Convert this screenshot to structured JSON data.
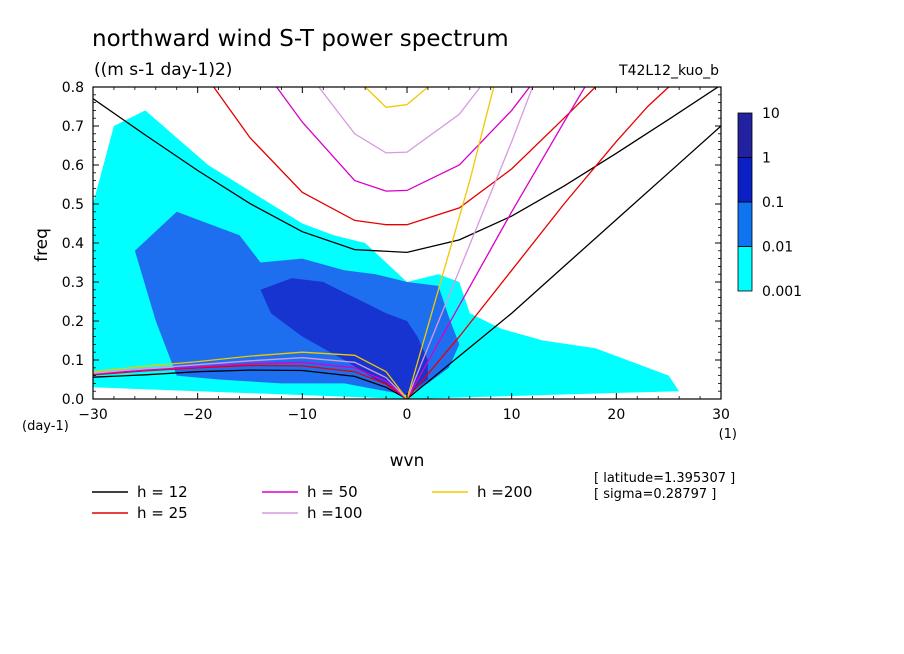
{
  "chart_data": {
    "type": "heatmap",
    "title": "northward wind S-T power spectrum",
    "units_label": "((m s-1 day-1)2)",
    "run_label": "T42L12_kuo_b",
    "xlabel": "wvn",
    "ylabel": "freq",
    "y_unit_label": "(day-1)",
    "x_unit_label": "(1)",
    "xlim": [
      -30,
      30
    ],
    "ylim": [
      0,
      0.8
    ],
    "x_ticks": [
      -30,
      -20,
      -10,
      0,
      10,
      20,
      30
    ],
    "y_ticks": [
      0.0,
      0.1,
      0.2,
      0.3,
      0.4,
      0.5,
      0.6,
      0.7,
      0.8
    ],
    "colorbar": {
      "levels": [
        "0.001",
        "0.01",
        "0.1",
        "1",
        "10"
      ],
      "colors": [
        "#00ffff",
        "#0f74f0",
        "#0a1fc4",
        "#2222a0"
      ]
    },
    "shading_colors": {
      "0.001": "#00ffff",
      "0.01": "#1e6ff0",
      "0.1": "#1834d0"
    },
    "regions": [
      {
        "level": "0.001",
        "points": [
          [
            -30,
            0.06
          ],
          [
            -30,
            0.5
          ],
          [
            -28,
            0.7
          ],
          [
            -25,
            0.74
          ],
          [
            -22,
            0.67
          ],
          [
            -19,
            0.6
          ],
          [
            -16,
            0.55
          ],
          [
            -13,
            0.5
          ],
          [
            -10,
            0.45
          ],
          [
            -7,
            0.42
          ],
          [
            -4,
            0.4
          ],
          [
            -2,
            0.35
          ],
          [
            0,
            0.3
          ],
          [
            3,
            0.32
          ],
          [
            5,
            0.3
          ],
          [
            6,
            0.22
          ],
          [
            9,
            0.18
          ],
          [
            13,
            0.15
          ],
          [
            18,
            0.13
          ],
          [
            25,
            0.06
          ],
          [
            26,
            0.02
          ],
          [
            0,
            0
          ],
          [
            -30,
            0.03
          ]
        ]
      },
      {
        "level": "0.01",
        "points": [
          [
            -22,
            0.06
          ],
          [
            -24,
            0.2
          ],
          [
            -26,
            0.38
          ],
          [
            -22,
            0.48
          ],
          [
            -16,
            0.42
          ],
          [
            -14,
            0.35
          ],
          [
            -10,
            0.36
          ],
          [
            -6,
            0.33
          ],
          [
            -3,
            0.32
          ],
          [
            0,
            0.3
          ],
          [
            3,
            0.29
          ],
          [
            4,
            0.21
          ],
          [
            5,
            0.14
          ],
          [
            4,
            0.08
          ],
          [
            2,
            0.04
          ],
          [
            0,
            0.01
          ],
          [
            -6,
            0.04
          ],
          [
            -12,
            0.04
          ],
          [
            -18,
            0.05
          ]
        ]
      },
      {
        "level": "0.1",
        "points": [
          [
            -13,
            0.22
          ],
          [
            -14,
            0.28
          ],
          [
            -11,
            0.31
          ],
          [
            -8,
            0.3
          ],
          [
            -5,
            0.26
          ],
          [
            -2,
            0.22
          ],
          [
            0,
            0.2
          ],
          [
            1,
            0.16
          ],
          [
            2,
            0.1
          ],
          [
            2,
            0.05
          ],
          [
            0,
            0.01
          ],
          [
            -3,
            0.05
          ],
          [
            -6,
            0.1
          ],
          [
            -10,
            0.16
          ]
        ]
      }
    ],
    "series": [
      {
        "name": "h = 12",
        "values": [
          [
            -30,
            0.77
          ],
          [
            -25,
            0.677
          ],
          [
            -20,
            0.586
          ],
          [
            -15,
            0.501
          ],
          [
            -10,
            0.429
          ],
          [
            -5,
            0.383
          ],
          [
            0,
            0.376
          ],
          [
            5,
            0.408
          ],
          [
            10,
            0.469
          ],
          [
            15,
            0.546
          ],
          [
            20,
            0.63
          ],
          [
            25,
            0.717
          ],
          [
            30,
            0.805
          ]
        ]
      },
      {
        "name": "h = 12",
        "values": [
          [
            -30,
            0.056
          ],
          [
            -25,
            0.062
          ],
          [
            -20,
            0.07
          ],
          [
            -15,
            0.074
          ],
          [
            -10,
            0.073
          ],
          [
            -5,
            0.058
          ],
          [
            -2,
            0.03
          ],
          [
            0,
            0.0
          ]
        ]
      },
      {
        "name": "h = 12",
        "values": [
          [
            0,
            0.0
          ],
          [
            5,
            0.11
          ],
          [
            10,
            0.22
          ],
          [
            15,
            0.34
          ],
          [
            20,
            0.46
          ],
          [
            25,
            0.58
          ],
          [
            30,
            0.7
          ]
        ]
      },
      {
        "name": "h = 25",
        "values": [
          [
            -19,
            0.82
          ],
          [
            -15,
            0.67
          ],
          [
            -10,
            0.53
          ],
          [
            -5,
            0.458
          ],
          [
            -2,
            0.447
          ],
          [
            0,
            0.447
          ],
          [
            5,
            0.49
          ],
          [
            10,
            0.59
          ],
          [
            15,
            0.72
          ],
          [
            18,
            0.8
          ]
        ]
      },
      {
        "name": "h = 25",
        "values": [
          [
            -30,
            0.062
          ],
          [
            -25,
            0.072
          ],
          [
            -20,
            0.08
          ],
          [
            -15,
            0.086
          ],
          [
            -10,
            0.085
          ],
          [
            -5,
            0.07
          ],
          [
            -2,
            0.038
          ],
          [
            0,
            0.0
          ]
        ]
      },
      {
        "name": "h = 25",
        "values": [
          [
            0,
            0.0
          ],
          [
            5,
            0.16
          ],
          [
            10,
            0.33
          ],
          [
            15,
            0.5
          ],
          [
            20,
            0.66
          ],
          [
            23,
            0.75
          ],
          [
            25,
            0.8
          ]
        ]
      },
      {
        "name": "h = 50",
        "values": [
          [
            -13,
            0.82
          ],
          [
            -10,
            0.71
          ],
          [
            -5,
            0.56
          ],
          [
            -2,
            0.533
          ],
          [
            0,
            0.535
          ],
          [
            5,
            0.6
          ],
          [
            10,
            0.74
          ],
          [
            12,
            0.81
          ]
        ]
      },
      {
        "name": "h = 50",
        "values": [
          [
            -30,
            0.064
          ],
          [
            -25,
            0.074
          ],
          [
            -20,
            0.082
          ],
          [
            -15,
            0.09
          ],
          [
            -10,
            0.094
          ],
          [
            -5,
            0.08
          ],
          [
            -2,
            0.045
          ],
          [
            0,
            0.0
          ]
        ]
      },
      {
        "name": "h = 50",
        "values": [
          [
            0,
            0.0
          ],
          [
            5,
            0.24
          ],
          [
            10,
            0.48
          ],
          [
            15,
            0.71
          ],
          [
            17,
            0.8
          ]
        ]
      },
      {
        "name": "h =100",
        "values": [
          [
            -9,
            0.82
          ],
          [
            -5,
            0.68
          ],
          [
            -2,
            0.631
          ],
          [
            0,
            0.633
          ],
          [
            5,
            0.73
          ],
          [
            7,
            0.8
          ]
        ]
      },
      {
        "name": "h =100",
        "values": [
          [
            -30,
            0.066
          ],
          [
            -25,
            0.078
          ],
          [
            -20,
            0.088
          ],
          [
            -15,
            0.098
          ],
          [
            -10,
            0.106
          ],
          [
            -5,
            0.094
          ],
          [
            -2,
            0.055
          ],
          [
            0,
            0.0
          ]
        ]
      },
      {
        "name": "h =100",
        "values": [
          [
            0,
            0.0
          ],
          [
            5,
            0.33
          ],
          [
            10,
            0.66
          ],
          [
            12,
            0.8
          ]
        ]
      },
      {
        "name": "h =200",
        "values": [
          [
            -4,
            0.8
          ],
          [
            -2,
            0.748
          ],
          [
            0,
            0.755
          ],
          [
            2,
            0.8
          ]
        ]
      },
      {
        "name": "h =200",
        "values": [
          [
            -30,
            0.07
          ],
          [
            -25,
            0.084
          ],
          [
            -20,
            0.096
          ],
          [
            -15,
            0.11
          ],
          [
            -10,
            0.12
          ],
          [
            -5,
            0.112
          ],
          [
            -2,
            0.07
          ],
          [
            0,
            0.0
          ]
        ]
      },
      {
        "name": "h =200",
        "values": [
          [
            0,
            0.0
          ],
          [
            3,
            0.28
          ],
          [
            6,
            0.56
          ],
          [
            8,
            0.77
          ],
          [
            8.3,
            0.8
          ]
        ]
      }
    ],
    "series_colors": {
      "h = 12": "#000000",
      "h = 25": "#e60000",
      "h = 50": "#d800c8",
      "h =100": "#d899e0",
      "h =200": "#f0c800"
    },
    "legend": {
      "placement": "bottom-left",
      "items": [
        {
          "label": "h = 12",
          "color": "#000000"
        },
        {
          "label": "h = 25",
          "color": "#e60000"
        },
        {
          "label": "h = 50",
          "color": "#d800c8"
        },
        {
          "label": "h =100",
          "color": "#d899e0"
        },
        {
          "label": "h =200",
          "color": "#f0c800"
        }
      ]
    },
    "annotations": [
      "[ latitude=1.395307 ]",
      "[ sigma=0.28797 ]"
    ]
  }
}
